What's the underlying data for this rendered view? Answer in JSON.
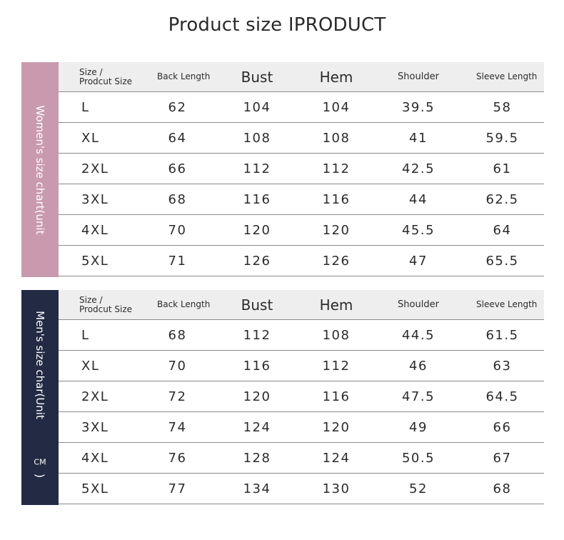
{
  "title": "Product size IPRODUCT",
  "colors": {
    "women_band": "#c99aae",
    "men_band": "#232a43",
    "header_bg": "#eeeeee"
  },
  "women": {
    "side_label": "Women's size chart(unit",
    "headers": [
      "Size / Prodcut Size",
      "Back Length",
      "Bust",
      "Hem",
      "Shoulder",
      "Sleeve Length"
    ],
    "rows": [
      [
        "L",
        "62",
        "104",
        "104",
        "39.5",
        "58"
      ],
      [
        "XL",
        "64",
        "108",
        "108",
        "41",
        "59.5"
      ],
      [
        "2XL",
        "66",
        "112",
        "112",
        "42.5",
        "61"
      ],
      [
        "3XL",
        "68",
        "116",
        "116",
        "44",
        "62.5"
      ],
      [
        "4XL",
        "70",
        "120",
        "120",
        "45.5",
        "64"
      ],
      [
        "5XL",
        "71",
        "126",
        "126",
        "47",
        "65.5"
      ]
    ]
  },
  "men": {
    "side_label_main": "Men's size char(Unit",
    "side_label_unit": "CM",
    "side_label_close": ")",
    "headers": [
      "Size / Prodcut Size",
      "Back Length",
      "Bust",
      "Hem",
      "Shoulder",
      "Sleeve Length"
    ],
    "rows": [
      [
        "L",
        "68",
        "112",
        "108",
        "44.5",
        "61.5"
      ],
      [
        "XL",
        "70",
        "116",
        "112",
        "46",
        "63"
      ],
      [
        "2XL",
        "72",
        "120",
        "116",
        "47.5",
        "64.5"
      ],
      [
        "3XL",
        "74",
        "124",
        "120",
        "49",
        "66"
      ],
      [
        "4XL",
        "76",
        "128",
        "124",
        "50.5",
        "67"
      ],
      [
        "5XL",
        "77",
        "134",
        "130",
        "52",
        "68"
      ]
    ]
  }
}
